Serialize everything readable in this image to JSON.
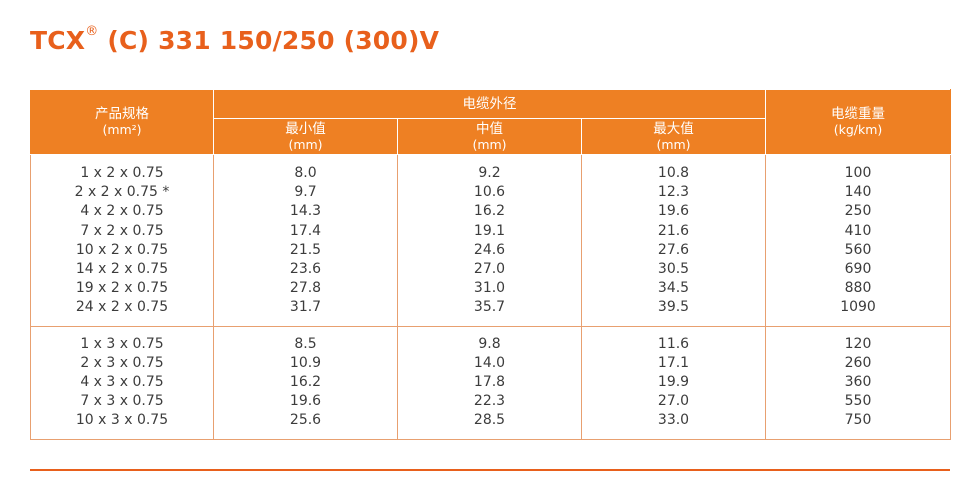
{
  "title": {
    "main": "TCX",
    "reg": "®",
    "rest": " (C) 331 150/250 (300)V"
  },
  "headers": {
    "spec": "产品规格",
    "spec_unit": "(mm²)",
    "diameter": "电缆外径",
    "min": "最小值",
    "min_unit": "(mm)",
    "mid": "中值",
    "mid_unit": "(mm)",
    "max": "最大值",
    "max_unit": "(mm)",
    "weight": "电缆重量",
    "weight_unit": "(kg/km)"
  },
  "groups": [
    {
      "spec": [
        "1 x 2 x 0.75",
        "2 x 2 x 0.75 *",
        "4 x 2 x 0.75",
        "7 x 2 x 0.75",
        "10 x 2 x 0.75",
        "14 x 2 x 0.75",
        "19 x 2 x 0.75",
        "24 x 2 x 0.75"
      ],
      "min": [
        "8.0",
        "9.7",
        "14.3",
        "17.4",
        "21.5",
        "23.6",
        "27.8",
        "31.7"
      ],
      "mid": [
        "9.2",
        "10.6",
        "16.2",
        "19.1",
        "24.6",
        "27.0",
        "31.0",
        "35.7"
      ],
      "max": [
        "10.8",
        "12.3",
        "19.6",
        "21.6",
        "27.6",
        "30.5",
        "34.5",
        "39.5"
      ],
      "weight": [
        "100",
        "140",
        "250",
        "410",
        "560",
        "690",
        "880",
        "1090"
      ]
    },
    {
      "spec": [
        "1 x 3 x 0.75",
        "2 x 3 x 0.75",
        "4 x 3 x 0.75",
        "7 x 3 x 0.75",
        "10 x 3 x 0.75"
      ],
      "min": [
        "8.5",
        "10.9",
        "16.2",
        "19.6",
        "25.6"
      ],
      "mid": [
        "9.8",
        "14.0",
        "17.8",
        "22.3",
        "28.5"
      ],
      "max": [
        "11.6",
        "17.1",
        "19.9",
        "27.0",
        "33.0"
      ],
      "weight": [
        "120",
        "260",
        "360",
        "550",
        "750"
      ]
    }
  ]
}
